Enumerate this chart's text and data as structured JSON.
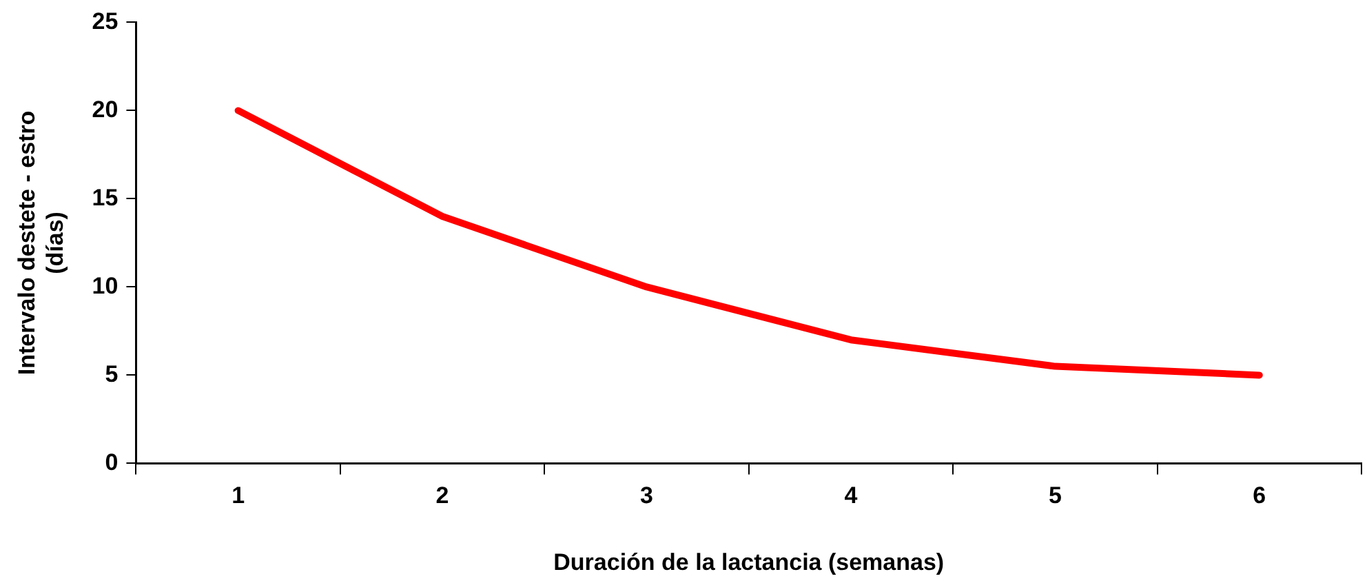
{
  "chart_data": {
    "type": "line",
    "xlabel": "Duración de la lactancia (semanas)",
    "ylabel": "Intervalo destete - estro\n(días)",
    "categories": [
      "1",
      "2",
      "3",
      "4",
      "5",
      "6"
    ],
    "series": [
      {
        "color": "#ff0000",
        "values": [
          20,
          14,
          10,
          7,
          5.5,
          5
        ]
      }
    ],
    "ylim": [
      0,
      25
    ],
    "yticks": [
      0,
      5,
      10,
      15,
      20,
      25
    ],
    "grid": false,
    "legend": false,
    "marker": "none",
    "line_style": "solid"
  }
}
